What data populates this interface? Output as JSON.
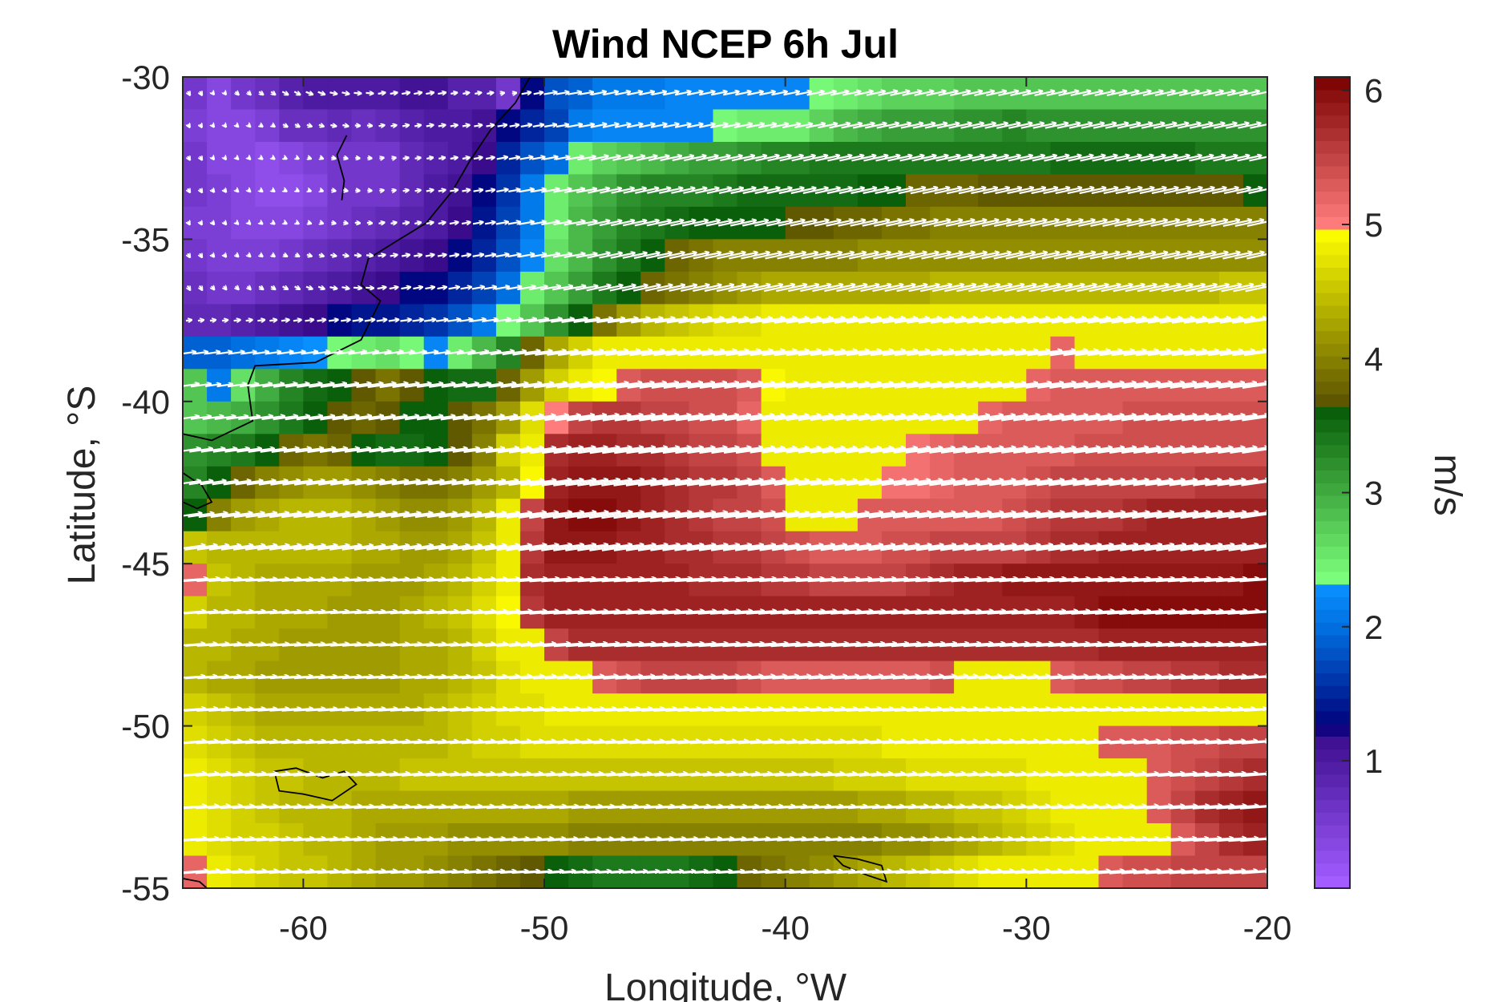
{
  "chart_data": {
    "type": "heatmap",
    "title": "Wind NCEP 6h Jul",
    "xlabel": "Longitude, °W",
    "ylabel": "Latitude, °S",
    "xlim": [
      -65,
      -20
    ],
    "ylim": [
      -55,
      -30
    ],
    "xticks": [
      -60,
      -50,
      -40,
      -30,
      -20
    ],
    "yticks": [
      -30,
      -35,
      -40,
      -45,
      -50,
      -55
    ],
    "colorbar": {
      "label": "m/s",
      "range": [
        0.05,
        6.1
      ],
      "ticks": [
        1,
        2,
        3,
        4,
        5,
        6
      ],
      "colormap": [
        {
          "value": 0.1,
          "color": "#a25cff"
        },
        {
          "value": 1.2,
          "color": "#3a0c8c"
        },
        {
          "value": 1.25,
          "color": "#00007a"
        },
        {
          "value": 2.0,
          "color": "#0070e0"
        },
        {
          "value": 2.3,
          "color": "#0a8fff"
        },
        {
          "value": 2.35,
          "color": "#7cff7c"
        },
        {
          "value": 3.6,
          "color": "#0a5f0a"
        },
        {
          "value": 3.65,
          "color": "#5a5200"
        },
        {
          "value": 4.95,
          "color": "#ffff00"
        },
        {
          "value": 5.0,
          "color": "#ff7c7c"
        },
        {
          "value": 6.1,
          "color": "#7a0000"
        }
      ]
    },
    "wind_speed_field": {
      "description": "grid of speeds, rows from north (-30.5) to south (-54.5), columns from -64.5 to -20.5, spacing 1 degree in lon, 1 degree in lat",
      "lat_rows": [
        -30.5,
        -31.5,
        -32.5,
        -33.5,
        -34.5,
        -35.5,
        -36.5,
        -37.5,
        -38.5,
        -39.5,
        -40.5,
        -41.5,
        -42.5,
        -43.5,
        -44.5,
        -45.5,
        -46.5,
        -47.5,
        -48.5,
        -49.5,
        -50.5,
        -51.5,
        -52.5,
        -53.5,
        -54.5
      ],
      "lon_start": -64.5,
      "lon_step": 1.0,
      "speed_rows": [
        "0.6 0.4 0.6 0.7 0.9 1.0 1.0 1.0 1.0 1.1 1.1 0.9 0.9 0.6 1.3 1.8 1.9 2.1 2.1 2.1 2.2 2.2 2.2 2.2 2.2 2.2 2.4 2.5 2.6 2.7 2.7 2.7 2.8 2.8 2.8 2.8 2.8 2.8 2.8 2.8 2.8 2.8 2.8 2.8 2.8",
        "0.5 0.4 0.4 0.5 0.7 0.7 0.8 0.7 0.8 0.9 1.0 1.0 1.1 1.3 1.5 1.7 2.1 2.2 2.2 2.2 2.2 2.2 2.4 2.5 2.5 2.5 2.7 2.9 3.0 3.1 3.1 3.1 3.2 3.2 3.3 3.2 3.2 3.2 3.2 3.2 3.2 3.2 3.2 3.2 3.2",
        "0.6 0.4 0.4 0.3 0.4 0.5 0.6 0.6 0.6 0.8 0.9 1.0 1.2 1.5 1.8 2.0 2.5 2.7 2.8 2.9 3.0 3.1 3.1 3.2 3.3 3.3 3.4 3.4 3.4 3.4 3.4 3.4 3.4 3.4 3.4 3.4 3.5 3.5 3.5 3.5 3.5 3.5 3.4 3.4 3.4",
        "0.6 0.5 0.4 0.3 0.3 0.4 0.6 0.6 0.6 0.8 1.0 1.1 1.3 1.6 2.1 2.5 2.8 3.0 3.2 3.3 3.3 3.3 3.4 3.5 3.5 3.5 3.5 3.5 3.6 3.6 3.8 3.8 3.8 3.7 3.7 3.7 3.7 3.7 3.7 3.7 3.7 3.7 3.7 3.7 3.6",
        "0.5 0.5 0.4 0.4 0.4 0.5 0.6 0.7 0.8 0.9 1.0 1.2 1.4 1.7 2.1 2.5 2.9 3.1 3.3 3.4 3.5 3.6 3.6 3.6 3.6 3.7 3.7 3.8 3.8 3.9 3.9 4.0 4.0 4.0 4.0 4.0 4.0 4.0 4.0 4.0 4.0 4.0 4.0 4.0 4.0",
        "0.6 0.5 0.5 0.5 0.6 0.7 0.8 0.9 1.0 1.1 1.2 1.3 1.5 1.8 2.2 2.6 2.9 3.2 3.4 3.6 3.8 3.9 4.0 4.0 4.0 4.0 4.0 4.0 4.1 4.1 4.1 4.1 4.1 4.1 4.1 4.1 4.1 4.1 4.1 4.1 4.1 4.1 4.1 4.1 4.1",
        "0.7 0.6 0.6 0.7 0.8 0.9 1.0 1.1 1.2 1.3 1.3 1.5 1.7 2.0 2.5 2.8 3.1 3.4 3.6 3.8 3.9 4.0 4.1 4.2 4.3 4.3 4.3 4.3 4.3 4.3 4.3 4.4 4.4 4.4 4.4 4.4 4.4 4.4 4.4 4.4 4.4 4.4 4.4 4.5 4.5",
        "0.8 0.8 0.9 1.0 1.1 1.2 1.3 1.4 1.4 1.5 1.6 1.8 2.1 2.4 2.8 3.2 3.6 3.9 4.2 4.4 4.5 4.6 4.7 4.7 4.8 4.8 4.8 4.8 4.8 4.8 4.8 4.8 4.8 4.8 4.8 4.8 4.8 4.8 4.8 4.8 4.8 4.8 4.8 4.8 4.8",
        "1.9 1.9 2.0 2.1 2.2 2.3 2.4 2.5 2.6 2.4 2.2 2.5 2.9 3.3 3.8 4.3 4.6 4.8 4.8 4.8 4.8 4.8 4.8 4.8 4.8 4.8 4.8 4.8 4.8 4.8 4.8 4.8 4.8 4.8 4.8 4.8 5.2 4.8 4.8 4.8 4.8 4.8 4.8 4.8 4.8",
        "2.8 2.1 2.6 3.0 3.3 3.5 3.6 3.7 3.9 3.7 3.6 3.5 3.5 3.8 4.2 4.6 4.8 4.9 5.3 5.4 5.4 5.4 5.4 5.3 4.9 4.8 4.8 4.8 4.8 4.8 4.8 4.8 4.8 4.8 4.8 5.2 5.3 5.3 5.3 5.3 5.3 5.3 5.3 5.3 5.3",
        "2.8 2.9 3.0 3.2 3.4 3.6 3.7 3.8 3.7 3.6 3.6 3.7 3.9 4.2 4.7 5.0 5.5 5.6 5.6 5.5 5.5 5.4 5.4 5.2 4.8 4.8 4.8 4.8 4.8 4.8 4.8 4.8 4.8 5.2 5.3 5.3 5.3 5.3 5.3 5.4 5.4 5.4 5.4 5.4 5.4",
        "3.2 3.3 3.4 3.6 3.8 3.9 3.8 3.6 3.5 3.5 3.6 3.7 4.0 4.6 4.8 5.7 5.8 5.8 5.7 5.7 5.6 5.5 5.5 5.4 4.8 4.8 4.8 4.8 4.8 4.8 5.1 5.2 5.3 5.3 5.3 5.3 5.3 5.4 5.4 5.4 5.4 5.4 5.4 5.4 5.4",
        "3.3 3.6 3.8 4.0 4.1 4.2 4.2 4.1 4.0 3.9 3.9 4.0 4.2 4.4 4.9 5.8 5.9 5.9 5.9 5.8 5.7 5.6 5.6 5.5 5.3 4.8 4.8 4.8 4.8 5.1 5.1 5.2 5.3 5.3 5.3 5.4 5.5 5.5 5.5 5.5 5.5 5.5 5.6 5.6 5.6",
        "3.6 4.0 4.2 4.3 4.4 4.4 4.4 4.3 4.2 4.1 4.1 4.2 4.4 4.8 5.5 5.9 6.0 6.0 5.9 5.8 5.7 5.6 5.5 5.5 5.4 4.8 4.8 4.8 5.3 5.3 5.3 5.3 5.3 5.3 5.4 5.5 5.6 5.6 5.6 5.7 5.8 5.8 5.8 5.8 5.8",
        "4.5 4.4 4.4 4.4 4.4 4.4 4.4 4.3 4.3 4.2 4.2 4.3 4.5 4.8 5.6 5.9 5.9 5.9 5.8 5.8 5.7 5.7 5.6 5.6 5.5 5.4 5.3 5.3 5.3 5.4 5.4 5.5 5.5 5.5 5.5 5.6 5.7 5.7 5.8 5.8 5.8 5.8 5.8 5.8 5.8",
        "5.2 4.5 4.4 4.3 4.3 4.3 4.3 4.2 4.2 4.2 4.3 4.4 4.6 4.8 5.7 5.8 5.8 5.8 5.8 5.8 5.8 5.7 5.7 5.7 5.6 5.6 5.5 5.5 5.5 5.5 5.6 5.7 5.8 5.8 5.9 5.9 5.9 5.9 5.9 5.9 5.9 5.9 5.9 5.9 6.0",
        "4.6 4.4 4.4 4.3 4.3 4.3 4.2 4.2 4.2 4.3 4.4 4.5 4.7 4.9 5.6 5.8 5.8 5.8 5.8 5.8 5.8 5.8 5.8 5.8 5.8 5.8 5.8 5.8 5.8 5.8 5.8 5.8 5.8 5.8 5.8 5.8 5.8 5.9 6.0 6.0 6.0 6.0 6.0 6.0 6.0",
        "4.4 4.4 4.3 4.3 4.2 4.2 4.2 4.2 4.2 4.3 4.3 4.4 4.6 4.8 4.8 5.5 5.7 5.7 5.7 5.7 5.7 5.7 5.7 5.7 5.7 5.7 5.7 5.7 5.7 5.7 5.7 5.7 5.7 5.7 5.7 5.7 5.7 5.7 5.8 5.8 5.8 5.8 5.8 5.8 5.8",
        "4.4 4.3 4.3 4.2 4.2 4.2 4.2 4.2 4.2 4.3 4.3 4.4 4.5 4.7 4.8 4.8 4.8 5.3 5.4 5.5 5.5 5.5 5.5 5.4 5.3 5.3 5.3 5.3 5.3 5.3 5.3 5.4 4.8 4.8 4.8 4.8 5.3 5.4 5.4 5.5 5.5 5.6 5.6 5.7 5.7",
        "4.6 4.5 4.4 4.3 4.3 4.3 4.3 4.3 4.3 4.3 4.4 4.5 4.6 4.7 4.7 4.8 4.8 4.8 4.8 4.8 4.8 4.8 4.8 4.8 4.8 4.8 4.8 4.8 4.8 4.8 4.8 4.8 4.8 4.8 4.8 4.8 4.8 4.8 4.8 4.8 4.8 4.8 4.8 4.8 4.8",
        "4.7 4.6 4.5 4.4 4.4 4.4 4.4 4.4 4.4 4.4 4.4 4.5 4.6 4.6 4.7 4.7 4.7 4.7 4.7 4.7 4.7 4.7 4.7 4.7 4.7 4.7 4.7 4.7 4.7 4.8 4.8 4.8 4.8 4.8 4.8 4.8 4.8 4.8 5.3 5.3 5.3 5.4 5.4 5.5 5.5",
        "4.8 4.7 4.6 4.5 4.5 4.4 4.4 4.4 4.4 4.5 4.5 4.5 4.5 4.5 4.5 4.5 4.5 4.5 4.5 4.5 4.5 4.5 4.5 4.5 4.5 4.5 4.5 4.6 4.6 4.6 4.7 4.7 4.7 4.7 4.7 4.8 4.8 4.8 4.8 4.8 5.3 5.4 5.5 5.6 5.7",
        "4.8 4.7 4.6 4.5 4.4 4.4 4.4 4.3 4.3 4.3 4.3 4.3 4.3 4.3 4.3 4.3 4.2 4.2 4.2 4.2 4.2 4.2 4.2 4.2 4.2 4.2 4.2 4.2 4.3 4.3 4.4 4.4 4.5 4.5 4.6 4.7 4.8 4.8 4.8 4.8 5.3 5.5 5.7 5.8 5.9",
        "4.8 4.7 4.6 4.6 4.5 4.4 4.4 4.3 4.2 4.2 4.2 4.1 4.1 4.1 4.1 4.1 4.0 4.0 4.0 4.0 4.0 4.0 4.0 4.0 4.0 4.0 4.0 4.0 4.0 4.1 4.1 4.2 4.3 4.4 4.5 4.6 4.7 4.8 4.8 4.8 4.8 5.3 5.5 5.7 5.8",
        "5.2 4.8 4.7 4.6 4.5 4.5 4.4 4.3 4.2 4.2 4.1 4.0 3.9 3.8 3.7 3.6 3.5 3.4 3.4 3.4 3.4 3.5 3.6 3.8 3.9 4.0 4.1 4.2 4.3 4.4 4.5 4.6 4.7 4.8 4.8 4.8 4.8 4.8 5.3 5.4 5.4 5.5 5.5 5.5 5.5"
      ]
    },
    "wind_direction": "predominantly westerly (toward east) over the southern area, with weak variable winds near the coast at -30 to -37",
    "coastlines": [
      "South America east coast",
      "Falkland Islands",
      "South Georgia"
    ]
  }
}
